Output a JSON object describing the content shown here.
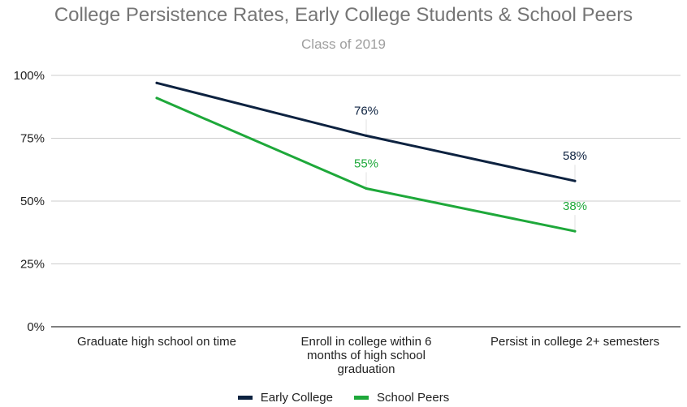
{
  "chart_data": {
    "type": "line",
    "title": "College Persistence Rates, Early College Students & School Peers",
    "subtitle": "Class of 2019",
    "categories": [
      "Graduate high school on time",
      "Enroll in college within 6 months of high school graduation",
      "Persist in college 2+ semesters"
    ],
    "category_lines": [
      [
        "Graduate high school on time"
      ],
      [
        "Enroll in college within 6",
        "months of high school",
        "graduation"
      ],
      [
        "Persist in college 2+ semesters"
      ]
    ],
    "ylim": [
      0,
      100
    ],
    "yticks": [
      0,
      25,
      50,
      75,
      100
    ],
    "ytick_labels": [
      "0%",
      "25%",
      "50%",
      "75%",
      "100%"
    ],
    "grid": true,
    "legend_position": "bottom",
    "series": [
      {
        "name": "Early College",
        "color": "#0d2240",
        "values": [
          97,
          76,
          58
        ],
        "data_labels": [
          null,
          "76%",
          "58%"
        ]
      },
      {
        "name": "School Peers",
        "color": "#1ea83a",
        "values": [
          91,
          55,
          38
        ],
        "data_labels": [
          null,
          "55%",
          "38%"
        ]
      }
    ]
  }
}
